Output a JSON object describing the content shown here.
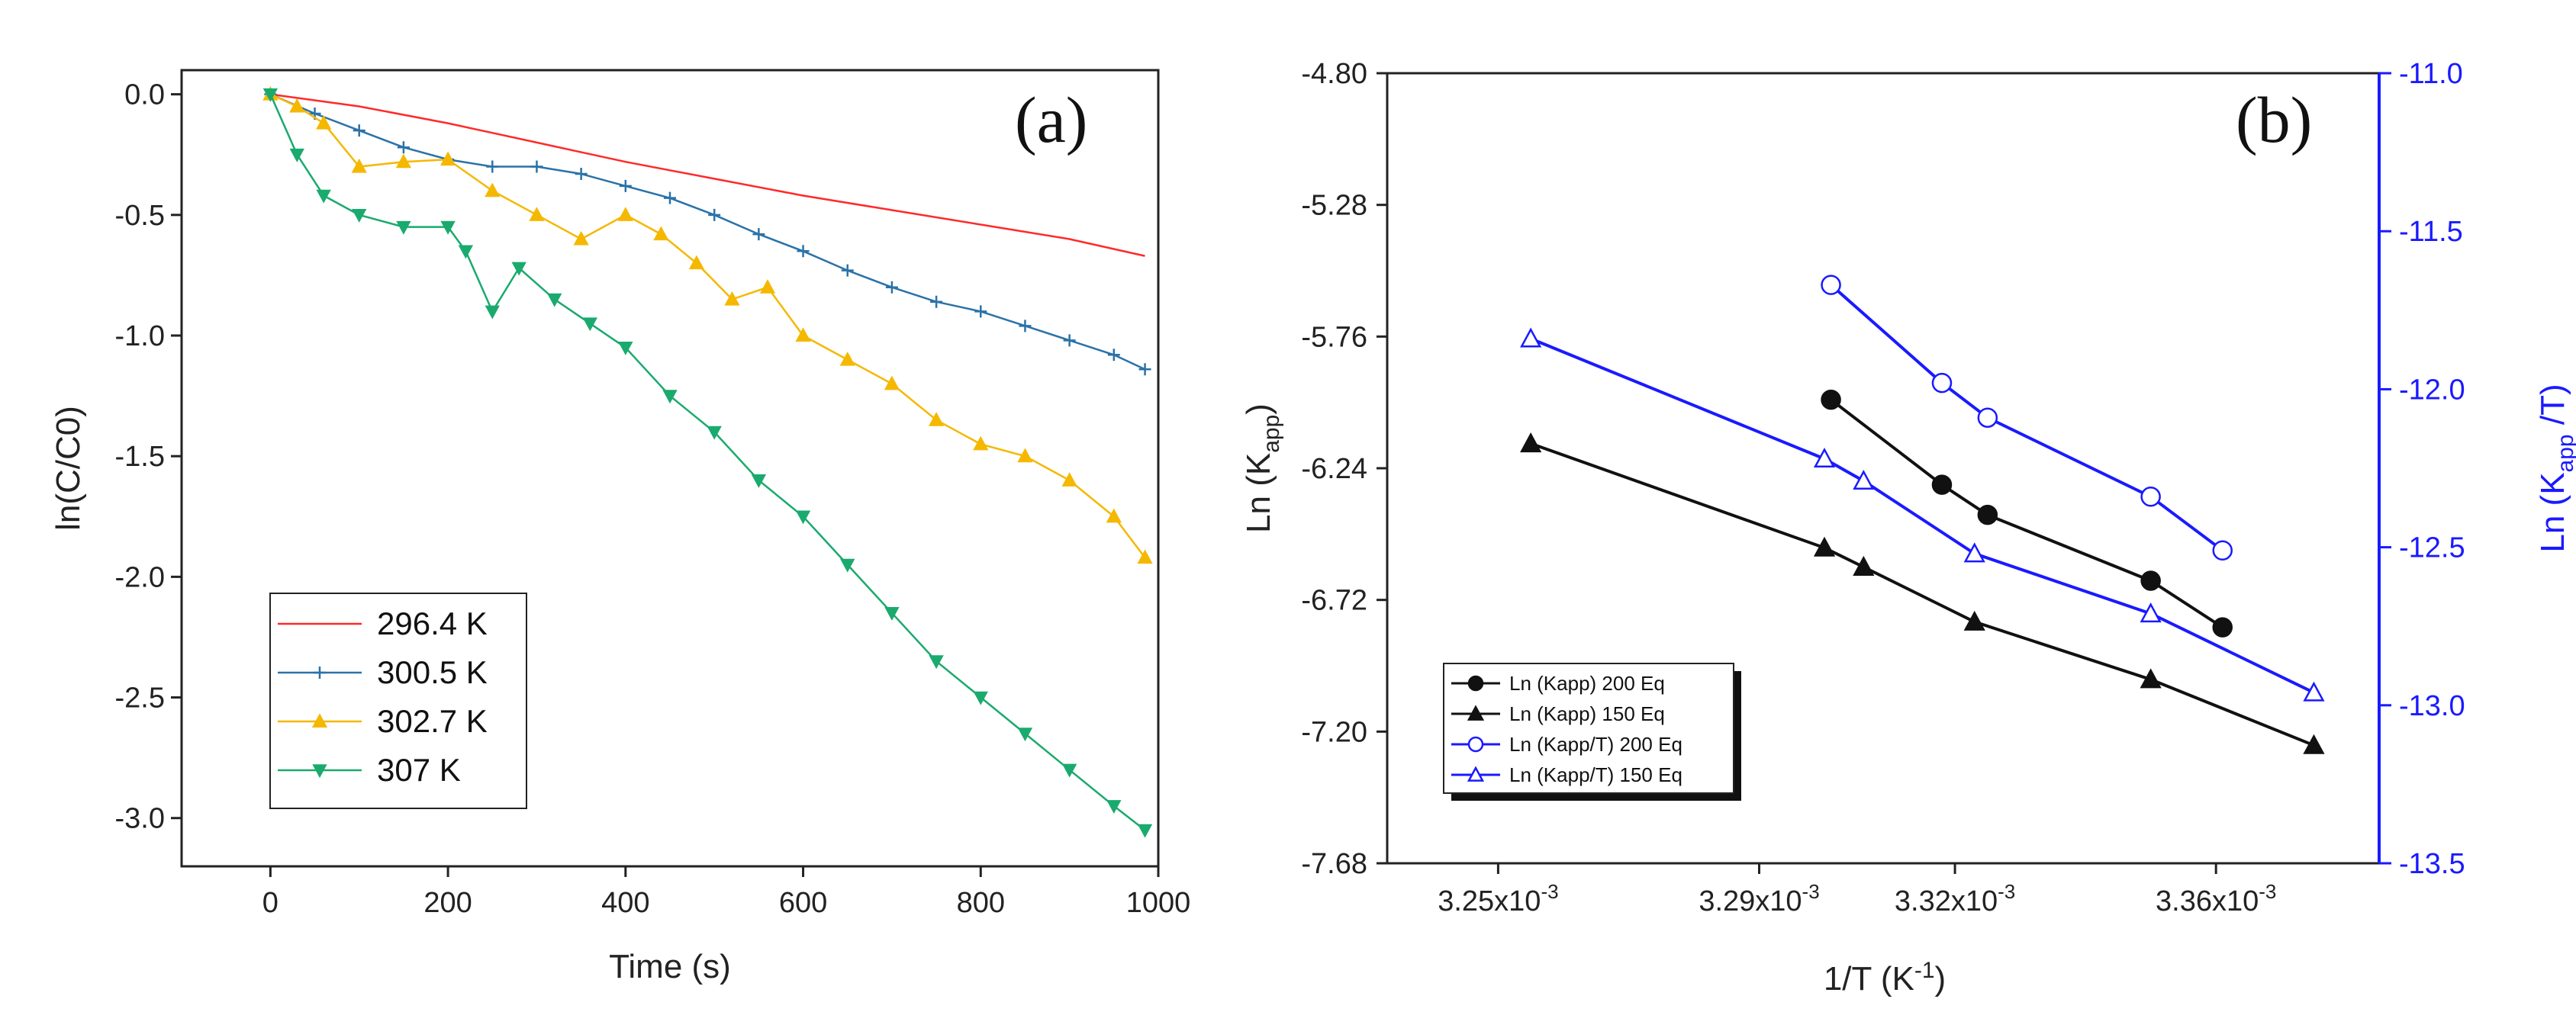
{
  "chart_data": [
    {
      "type": "line",
      "panel_label": "(a)",
      "xlabel": "Time (s)",
      "ylabel": "ln(C/C0)",
      "xlim": [
        -100,
        1000
      ],
      "ylim": [
        -3.2,
        0.1
      ],
      "xticks": [
        "0",
        "200",
        "400",
        "600",
        "800",
        "1000"
      ],
      "yticks": [
        "0.0",
        "-0.5",
        "-1.0",
        "-1.5",
        "-2.0",
        "-2.5",
        "-3.0"
      ],
      "legend_position": "bottom-left",
      "series": [
        {
          "name": "296.4 K",
          "color": "#ff2a2a",
          "marker": "none",
          "x": [
            0,
            100,
            200,
            300,
            400,
            500,
            600,
            700,
            800,
            900,
            985
          ],
          "y": [
            0.0,
            -0.05,
            -0.12,
            -0.2,
            -0.28,
            -0.35,
            -0.42,
            -0.48,
            -0.54,
            -0.6,
            -0.67
          ]
        },
        {
          "name": "300.5 K",
          "color": "#2a72a8",
          "marker": "plus",
          "x": [
            0,
            50,
            100,
            150,
            200,
            250,
            300,
            350,
            400,
            450,
            500,
            550,
            600,
            650,
            700,
            750,
            800,
            850,
            900,
            950,
            985
          ],
          "y": [
            0.0,
            -0.08,
            -0.15,
            -0.22,
            -0.27,
            -0.3,
            -0.3,
            -0.33,
            -0.38,
            -0.43,
            -0.5,
            -0.58,
            -0.65,
            -0.73,
            -0.8,
            -0.86,
            -0.9,
            -0.96,
            -1.02,
            -1.08,
            -1.14
          ]
        },
        {
          "name": "302.7 K",
          "color": "#f5b800",
          "marker": "triangle-up",
          "x": [
            0,
            30,
            60,
            100,
            150,
            200,
            250,
            300,
            350,
            400,
            440,
            480,
            520,
            560,
            600,
            650,
            700,
            750,
            800,
            850,
            900,
            950,
            985
          ],
          "y": [
            0.0,
            -0.05,
            -0.12,
            -0.3,
            -0.28,
            -0.27,
            -0.4,
            -0.5,
            -0.6,
            -0.5,
            -0.58,
            -0.7,
            -0.85,
            -0.8,
            -1.0,
            -1.1,
            -1.2,
            -1.35,
            -1.45,
            -1.5,
            -1.6,
            -1.75,
            -1.92
          ]
        },
        {
          "name": "307 K",
          "color": "#1aaa6e",
          "marker": "triangle-down",
          "x": [
            0,
            30,
            60,
            100,
            150,
            200,
            220,
            250,
            280,
            320,
            360,
            400,
            450,
            500,
            550,
            600,
            650,
            700,
            750,
            800,
            850,
            900,
            950,
            985
          ],
          "y": [
            0.0,
            -0.25,
            -0.42,
            -0.5,
            -0.55,
            -0.55,
            -0.65,
            -0.9,
            -0.72,
            -0.85,
            -0.95,
            -1.05,
            -1.25,
            -1.4,
            -1.6,
            -1.75,
            -1.95,
            -2.15,
            -2.35,
            -2.5,
            -2.65,
            -2.8,
            -2.95,
            -3.05
          ]
        }
      ]
    },
    {
      "type": "line",
      "panel_label": "(b)",
      "xlabel_main": "1/T (K",
      "xlabel_sup": "-1",
      "xlabel_end": ")",
      "ylabel_left_main": "Ln (K",
      "ylabel_left_sub": "app",
      "ylabel_left_end": ")",
      "ylabel_right_main": "Ln (K",
      "ylabel_right_sub": "app",
      "ylabel_right_end": " /T)",
      "xlim": [
        0.003233,
        0.003385
      ],
      "ylim_left": [
        -7.68,
        -4.8
      ],
      "ylim_right": [
        -13.5,
        -11.0
      ],
      "xticks": [
        {
          "value": 0.00325,
          "base": "3.25x10",
          "exp": "-3"
        },
        {
          "value": 0.00329,
          "base": "3.29x10",
          "exp": "-3"
        },
        {
          "value": 0.00332,
          "base": "3.32x10",
          "exp": "-3"
        },
        {
          "value": 0.00336,
          "base": "3.36x10",
          "exp": "-3"
        }
      ],
      "yticks_left": [
        "-4.80",
        "-5.28",
        "-5.76",
        "-6.24",
        "-6.72",
        "-7.20",
        "-7.68"
      ],
      "yticks_right": [
        "-11.0",
        "-11.5",
        "-12.0",
        "-12.5",
        "-13.0",
        "-13.5"
      ],
      "left_axis_color": "#222222",
      "right_axis_color": "#1a1aff",
      "legend_position": "bottom-left",
      "series": [
        {
          "name": "Ln (Kapp) 200 Eq",
          "axis": "left",
          "color": "#111111",
          "marker": "circle-filled",
          "x": [
            0.003301,
            0.003318,
            0.003325,
            0.00335,
            0.003361
          ],
          "y": [
            -5.99,
            -6.3,
            -6.41,
            -6.65,
            -6.82
          ]
        },
        {
          "name": "Ln (Kapp) 150 Eq",
          "axis": "left",
          "color": "#111111",
          "marker": "triangle-filled",
          "x": [
            0.003255,
            0.0033,
            0.003306,
            0.003323,
            0.00335,
            0.003375
          ],
          "y": [
            -6.15,
            -6.53,
            -6.6,
            -6.8,
            -7.01,
            -7.25
          ]
        },
        {
          "name": "Ln (Kapp/T) 200 Eq",
          "axis": "right",
          "color": "#1a1aff",
          "marker": "circle-open",
          "x": [
            0.003301,
            0.003318,
            0.003325,
            0.00335,
            0.003361
          ],
          "y": [
            -11.67,
            -11.98,
            -12.09,
            -12.34,
            -12.51
          ]
        },
        {
          "name": "Ln (Kapp/T) 150 Eq",
          "axis": "right",
          "color": "#1a1aff",
          "marker": "triangle-open",
          "x": [
            0.003255,
            0.0033,
            0.003306,
            0.003323,
            0.00335,
            0.003375
          ],
          "y": [
            -11.84,
            -12.22,
            -12.29,
            -12.52,
            -12.71,
            -12.96
          ]
        }
      ]
    }
  ]
}
